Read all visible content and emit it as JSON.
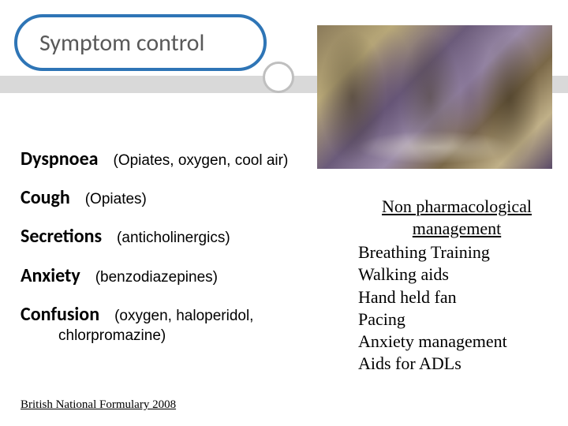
{
  "title": "Symptom control",
  "symptoms": [
    {
      "name": "Dyspnoea",
      "tx": "(Opiates, oxygen, cool air)"
    },
    {
      "name": "Cough",
      "tx": "(Opiates)"
    },
    {
      "name": "Secretions",
      "tx": "(anticholinergics)"
    },
    {
      "name": "Anxiety",
      "tx": "(benzodiazepines)"
    },
    {
      "name": "Confusion",
      "tx": "(oxygen, haloperidol,",
      "cont": "chlorpromazine)"
    }
  ],
  "nonpharm": {
    "title": "Non pharmacological management",
    "items": [
      "Breathing Training",
      "Walking aids",
      "Hand held fan",
      "Pacing",
      "Anxiety management",
      "Aids for ADLs"
    ]
  },
  "footer": "British National Formulary 2008",
  "colors": {
    "title_border": "#2e75b6",
    "title_text": "#595959",
    "band": "#d9d9d9",
    "ring": "#bfbfbf",
    "text": "#000000",
    "bg": "#ffffff"
  }
}
